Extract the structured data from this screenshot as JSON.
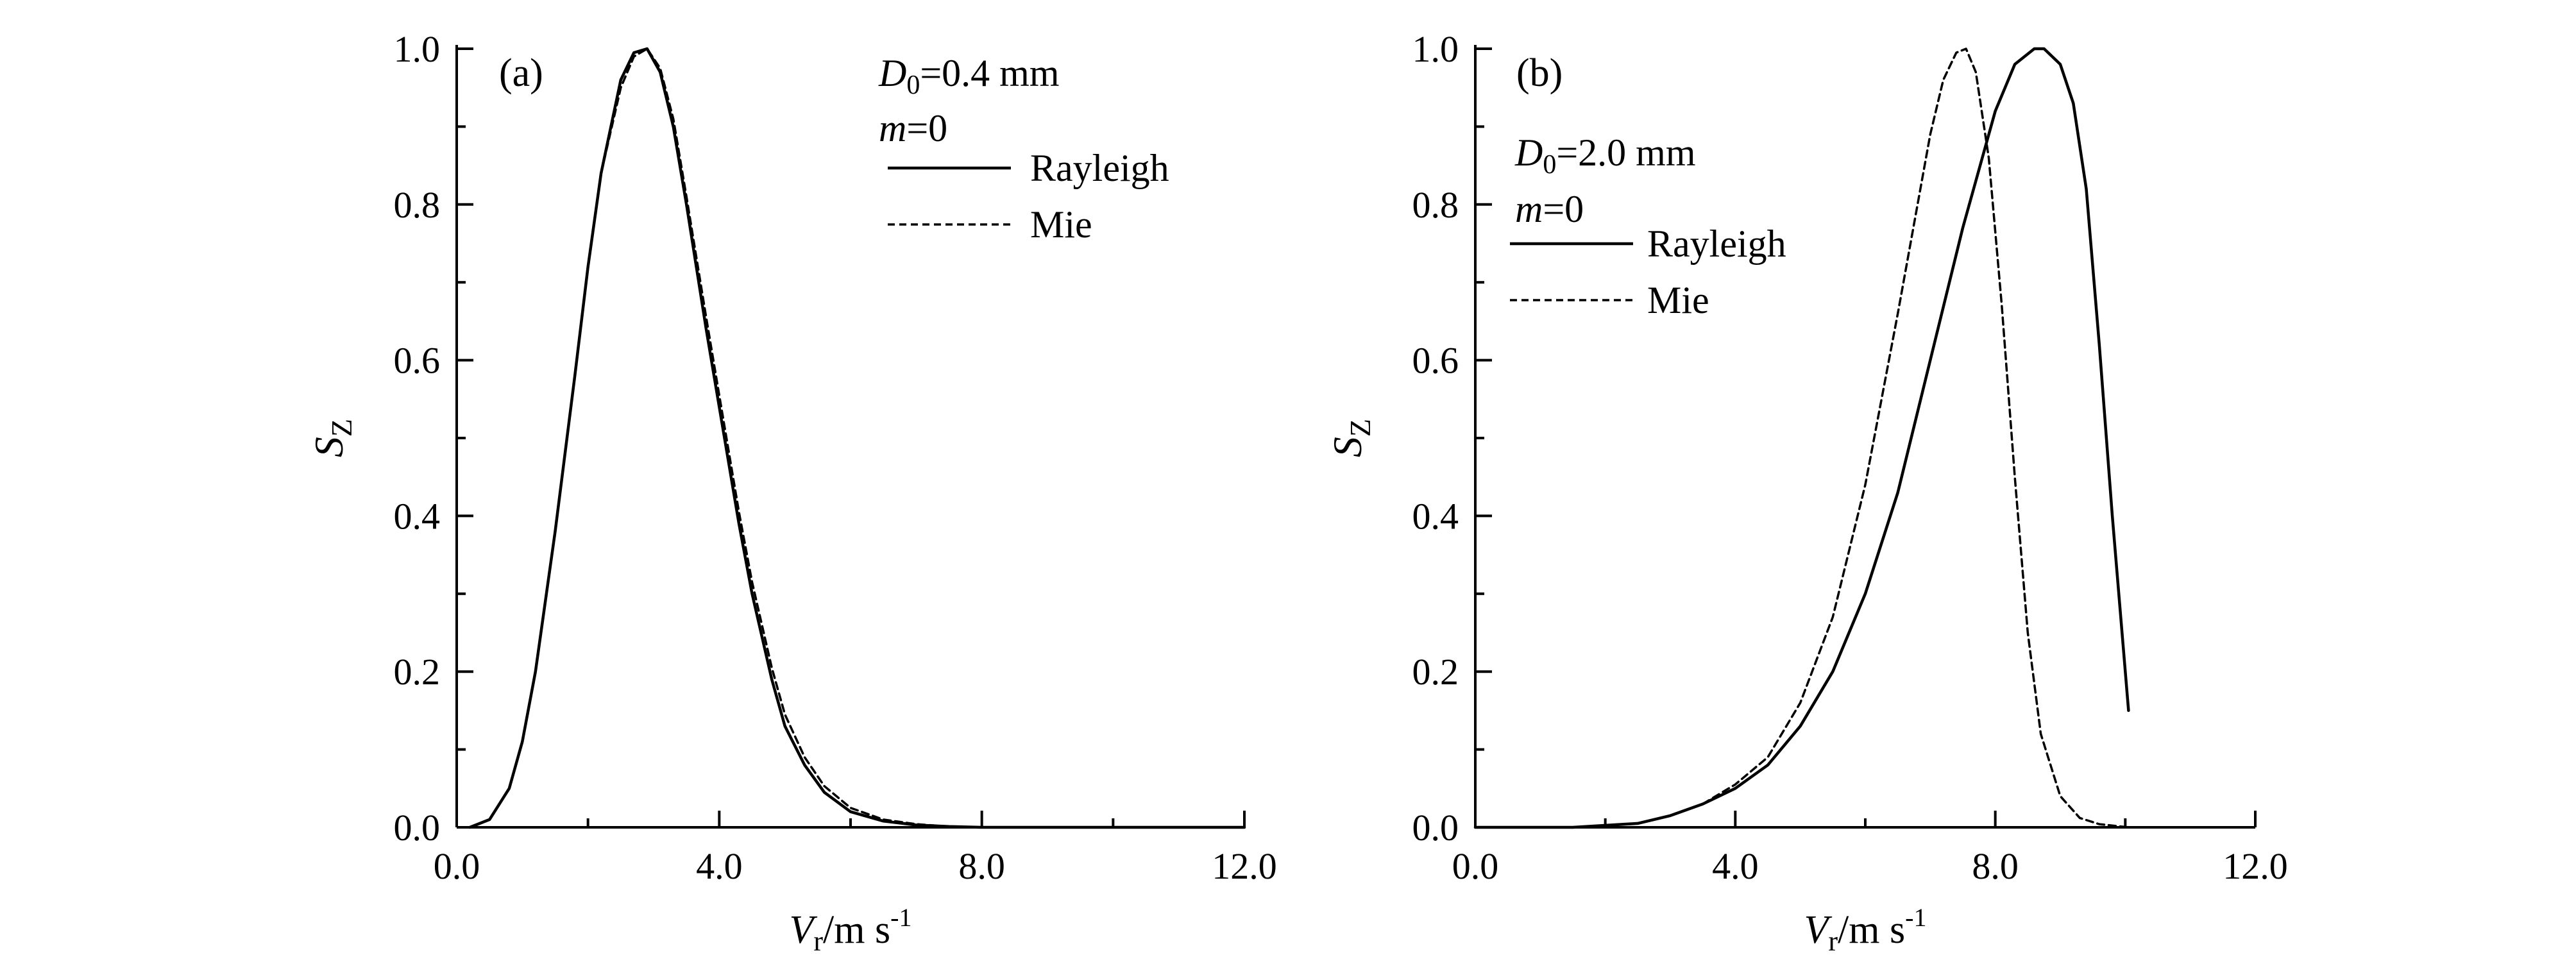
{
  "chart_data": [
    {
      "type": "line",
      "panel_label": "(a)",
      "xlabel": {
        "main": "V",
        "sub": "r",
        "unit": "/m s",
        "sup": "-1"
      },
      "ylabel": {
        "main": "S",
        "sub": "Z"
      },
      "xlim": [
        0,
        12
      ],
      "ylim": [
        0,
        1
      ],
      "x_ticks": [
        0,
        4,
        8,
        12
      ],
      "x_tick_labels": [
        "0.0",
        "4.0",
        "8.0",
        "12.0"
      ],
      "y_ticks": [
        0,
        0.2,
        0.4,
        0.6,
        0.8,
        1.0
      ],
      "y_tick_labels": [
        "0.0",
        "0.2",
        "0.4",
        "0.6",
        "0.8",
        "1.0"
      ],
      "grid": false,
      "legend_position": "top-right",
      "params": [
        {
          "main": "D",
          "sub": "0",
          "rest": "=0.4 mm"
        },
        {
          "main": "m",
          "sub": "",
          "rest": "=0"
        }
      ],
      "series": [
        {
          "name": "Rayleigh",
          "style": "solid",
          "x": [
            0.2,
            0.5,
            0.8,
            1.0,
            1.2,
            1.5,
            1.8,
            2.0,
            2.2,
            2.5,
            2.7,
            2.9,
            3.1,
            3.3,
            3.5,
            3.8,
            4.0,
            4.3,
            4.5,
            4.8,
            5.0,
            5.3,
            5.6,
            6.0,
            6.5,
            7.0,
            7.5,
            8.0,
            9.0,
            10.0,
            12.0
          ],
          "y": [
            0.0,
            0.01,
            0.05,
            0.11,
            0.2,
            0.38,
            0.58,
            0.72,
            0.84,
            0.96,
            0.995,
            1.0,
            0.97,
            0.9,
            0.8,
            0.64,
            0.54,
            0.39,
            0.3,
            0.19,
            0.13,
            0.08,
            0.045,
            0.02,
            0.008,
            0.003,
            0.001,
            0.0,
            0.0,
            0.0,
            0.0
          ]
        },
        {
          "name": "Mie",
          "style": "dashed",
          "x": [
            0.2,
            0.5,
            0.8,
            1.0,
            1.2,
            1.5,
            1.8,
            2.0,
            2.2,
            2.5,
            2.7,
            2.9,
            3.1,
            3.3,
            3.5,
            3.8,
            4.0,
            4.3,
            4.5,
            4.8,
            5.0,
            5.3,
            5.6,
            6.0,
            6.5,
            7.0,
            7.5,
            8.0,
            9.0,
            10.0,
            12.0
          ],
          "y": [
            0.0,
            0.01,
            0.05,
            0.11,
            0.2,
            0.38,
            0.58,
            0.72,
            0.84,
            0.95,
            0.99,
            1.0,
            0.975,
            0.91,
            0.81,
            0.655,
            0.555,
            0.405,
            0.315,
            0.205,
            0.145,
            0.09,
            0.053,
            0.025,
            0.01,
            0.004,
            0.001,
            0.0,
            0.0,
            0.0,
            0.0
          ]
        }
      ]
    },
    {
      "type": "line",
      "panel_label": "(b)",
      "xlabel": {
        "main": "V",
        "sub": "r",
        "unit": "/m s",
        "sup": "-1"
      },
      "ylabel": {
        "main": "S",
        "sub": "Z"
      },
      "xlim": [
        0,
        12
      ],
      "ylim": [
        0,
        1
      ],
      "x_ticks": [
        0,
        4,
        8,
        12
      ],
      "x_tick_labels": [
        "0.0",
        "4.0",
        "8.0",
        "12.0"
      ],
      "y_ticks": [
        0,
        0.2,
        0.4,
        0.6,
        0.8,
        1.0
      ],
      "y_tick_labels": [
        "0.0",
        "0.2",
        "0.4",
        "0.6",
        "0.8",
        "1.0"
      ],
      "grid": false,
      "legend_position": "top-left",
      "params": [
        {
          "main": "D",
          "sub": "0",
          "rest": "=2.0 mm"
        },
        {
          "main": "m",
          "sub": "",
          "rest": "=0"
        }
      ],
      "series": [
        {
          "name": "Rayleigh",
          "style": "solid",
          "x": [
            0.0,
            1.5,
            2.5,
            3.0,
            3.5,
            4.0,
            4.5,
            5.0,
            5.5,
            6.0,
            6.5,
            7.0,
            7.5,
            8.0,
            8.3,
            8.6,
            8.75,
            9.0,
            9.2,
            9.4,
            9.6,
            9.8,
            10.05
          ],
          "y": [
            0.0,
            0.0,
            0.005,
            0.015,
            0.03,
            0.05,
            0.08,
            0.13,
            0.2,
            0.3,
            0.43,
            0.6,
            0.77,
            0.92,
            0.98,
            1.0,
            1.0,
            0.98,
            0.93,
            0.82,
            0.62,
            0.4,
            0.15
          ]
        },
        {
          "name": "Mie",
          "style": "dashed",
          "x": [
            0.0,
            1.5,
            2.5,
            3.0,
            3.5,
            4.0,
            4.5,
            5.0,
            5.5,
            6.0,
            6.5,
            7.0,
            7.2,
            7.4,
            7.55,
            7.7,
            7.9,
            8.1,
            8.3,
            8.5,
            8.7,
            9.0,
            9.3,
            9.6,
            10.05
          ],
          "y": [
            0.0,
            0.0,
            0.005,
            0.015,
            0.03,
            0.055,
            0.09,
            0.16,
            0.27,
            0.44,
            0.66,
            0.89,
            0.96,
            0.995,
            1.0,
            0.97,
            0.86,
            0.67,
            0.45,
            0.25,
            0.12,
            0.04,
            0.012,
            0.004,
            0.0
          ]
        }
      ]
    }
  ]
}
